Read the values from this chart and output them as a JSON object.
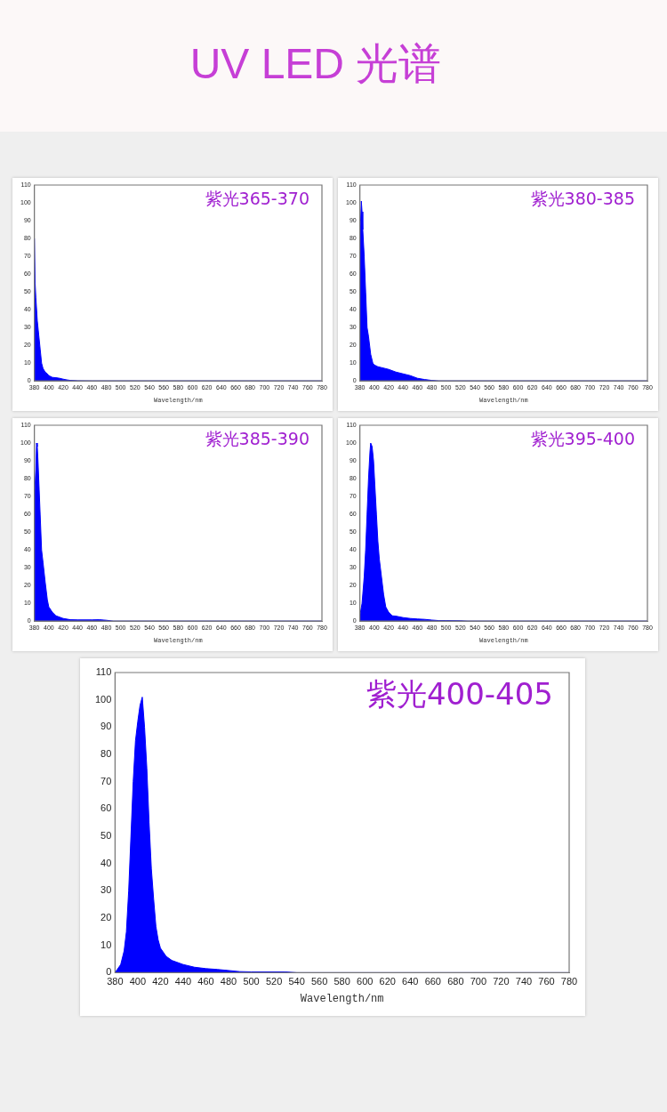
{
  "chart_data": [
    {
      "type": "area",
      "title": "紫光365-370",
      "annotations": [
        "UV LED  光谱"
      ],
      "xlabel": "Wavelength/nm",
      "xlim": [
        380,
        780
      ],
      "xticks": [
        380,
        400,
        420,
        440,
        460,
        480,
        500,
        520,
        540,
        560,
        580,
        600,
        620,
        640,
        660,
        680,
        700,
        720,
        740,
        760,
        780
      ],
      "ylim": [
        0,
        110
      ],
      "yticks": [
        0,
        10,
        20,
        30,
        40,
        50,
        60,
        70,
        80,
        90,
        100,
        110
      ],
      "grid": false,
      "legend": false,
      "marker": "none",
      "series": [
        {
          "color": "#0000ff",
          "x": [
            380,
            381,
            382,
            384,
            386,
            388,
            390,
            392,
            395,
            398,
            400,
            405,
            410,
            415,
            420,
            425,
            430,
            440,
            460,
            780
          ],
          "values": [
            80,
            55,
            47,
            34,
            26,
            18,
            10,
            7,
            5,
            4,
            3,
            2,
            1.8,
            1.5,
            1,
            0.6,
            0.3,
            0.1,
            0,
            0
          ]
        }
      ]
    },
    {
      "type": "area",
      "title": "紫光380-385",
      "xlabel": "Wavelength/nm",
      "xlim": [
        380,
        780
      ],
      "xticks": [
        380,
        400,
        420,
        440,
        460,
        480,
        500,
        520,
        540,
        560,
        580,
        600,
        620,
        640,
        660,
        680,
        700,
        720,
        740,
        760,
        780
      ],
      "ylim": [
        0,
        110
      ],
      "yticks": [
        0,
        10,
        20,
        30,
        40,
        50,
        60,
        70,
        80,
        90,
        100,
        110
      ],
      "grid": false,
      "legend": false,
      "marker": "none",
      "series": [
        {
          "color": "#0000ff",
          "x": [
            380,
            381,
            382,
            383,
            384,
            386,
            388,
            390,
            392,
            395,
            398,
            400,
            405,
            410,
            420,
            430,
            440,
            450,
            460,
            470,
            480,
            490,
            780
          ],
          "values": [
            85,
            90,
            101,
            95,
            85,
            70,
            50,
            30,
            25,
            15,
            10,
            9,
            8,
            7.5,
            6.5,
            5,
            4,
            3,
            1.5,
            0.8,
            0.3,
            0,
            0
          ]
        }
      ]
    },
    {
      "type": "area",
      "title": "紫光385-390",
      "xlabel": "Wavelength/nm",
      "xlim": [
        380,
        780
      ],
      "xticks": [
        380,
        400,
        420,
        440,
        460,
        480,
        500,
        520,
        540,
        560,
        580,
        600,
        620,
        640,
        660,
        680,
        700,
        720,
        740,
        760,
        780
      ],
      "ylim": [
        0,
        110
      ],
      "yticks": [
        0,
        10,
        20,
        30,
        40,
        50,
        60,
        70,
        80,
        90,
        100,
        110
      ],
      "grid": false,
      "legend": false,
      "marker": "none",
      "series": [
        {
          "color": "#0000ff",
          "x": [
            380,
            382,
            383,
            384,
            385,
            386,
            388,
            390,
            392,
            395,
            398,
            400,
            405,
            410,
            420,
            430,
            440,
            460,
            470,
            480,
            490,
            780
          ],
          "values": [
            70,
            85,
            100,
            98,
            90,
            80,
            60,
            40,
            33,
            22,
            12,
            8,
            5,
            3,
            1.5,
            0.8,
            0.7,
            0.7,
            0.8,
            0.5,
            0,
            0
          ]
        }
      ]
    },
    {
      "type": "area",
      "title": "紫光395-400",
      "xlabel": "Wavelength/nm",
      "xlim": [
        380,
        780
      ],
      "xticks": [
        380,
        400,
        420,
        440,
        460,
        480,
        500,
        520,
        540,
        560,
        580,
        600,
        620,
        640,
        660,
        680,
        700,
        720,
        740,
        760,
        780
      ],
      "ylim": [
        0,
        110
      ],
      "yticks": [
        0,
        10,
        20,
        30,
        40,
        50,
        60,
        70,
        80,
        90,
        100,
        110
      ],
      "grid": false,
      "legend": false,
      "marker": "none",
      "series": [
        {
          "color": "#0000ff",
          "x": [
            380,
            383,
            386,
            388,
            390,
            392,
            394,
            395,
            397,
            399,
            401,
            403,
            405,
            407,
            410,
            413,
            416,
            420,
            425,
            430,
            440,
            450,
            460,
            470,
            480,
            490,
            500,
            520,
            530,
            780
          ],
          "values": [
            3,
            10,
            25,
            40,
            60,
            80,
            95,
            100,
            98,
            90,
            75,
            60,
            45,
            35,
            25,
            15,
            8,
            5,
            3,
            2.8,
            2,
            1.5,
            1.2,
            1,
            0.6,
            0.3,
            0.3,
            0.2,
            0,
            0
          ]
        }
      ]
    },
    {
      "type": "area",
      "title": "紫光400-405",
      "xlabel": "Wavelength/nm",
      "xlim": [
        380,
        780
      ],
      "xticks": [
        380,
        400,
        420,
        440,
        460,
        480,
        500,
        520,
        540,
        560,
        580,
        600,
        620,
        640,
        660,
        680,
        700,
        720,
        740,
        760,
        780
      ],
      "ylim": [
        0,
        110
      ],
      "yticks": [
        0,
        10,
        20,
        30,
        40,
        50,
        60,
        70,
        80,
        90,
        100,
        110
      ],
      "grid": false,
      "legend": false,
      "marker": "none",
      "series": [
        {
          "color": "#0000ff",
          "x": [
            380,
            385,
            388,
            390,
            392,
            394,
            396,
            398,
            400,
            402,
            404,
            406,
            408,
            410,
            412,
            414,
            416,
            418,
            420,
            425,
            430,
            440,
            450,
            460,
            470,
            480,
            490,
            500,
            530,
            540,
            780
          ],
          "values": [
            0,
            3,
            8,
            15,
            30,
            50,
            70,
            85,
            92,
            98,
            101,
            90,
            75,
            55,
            38,
            27,
            17,
            12,
            9,
            6,
            4.5,
            3,
            2,
            1.5,
            1.2,
            0.8,
            0.4,
            0.3,
            0.3,
            0,
            0
          ]
        }
      ]
    }
  ]
}
